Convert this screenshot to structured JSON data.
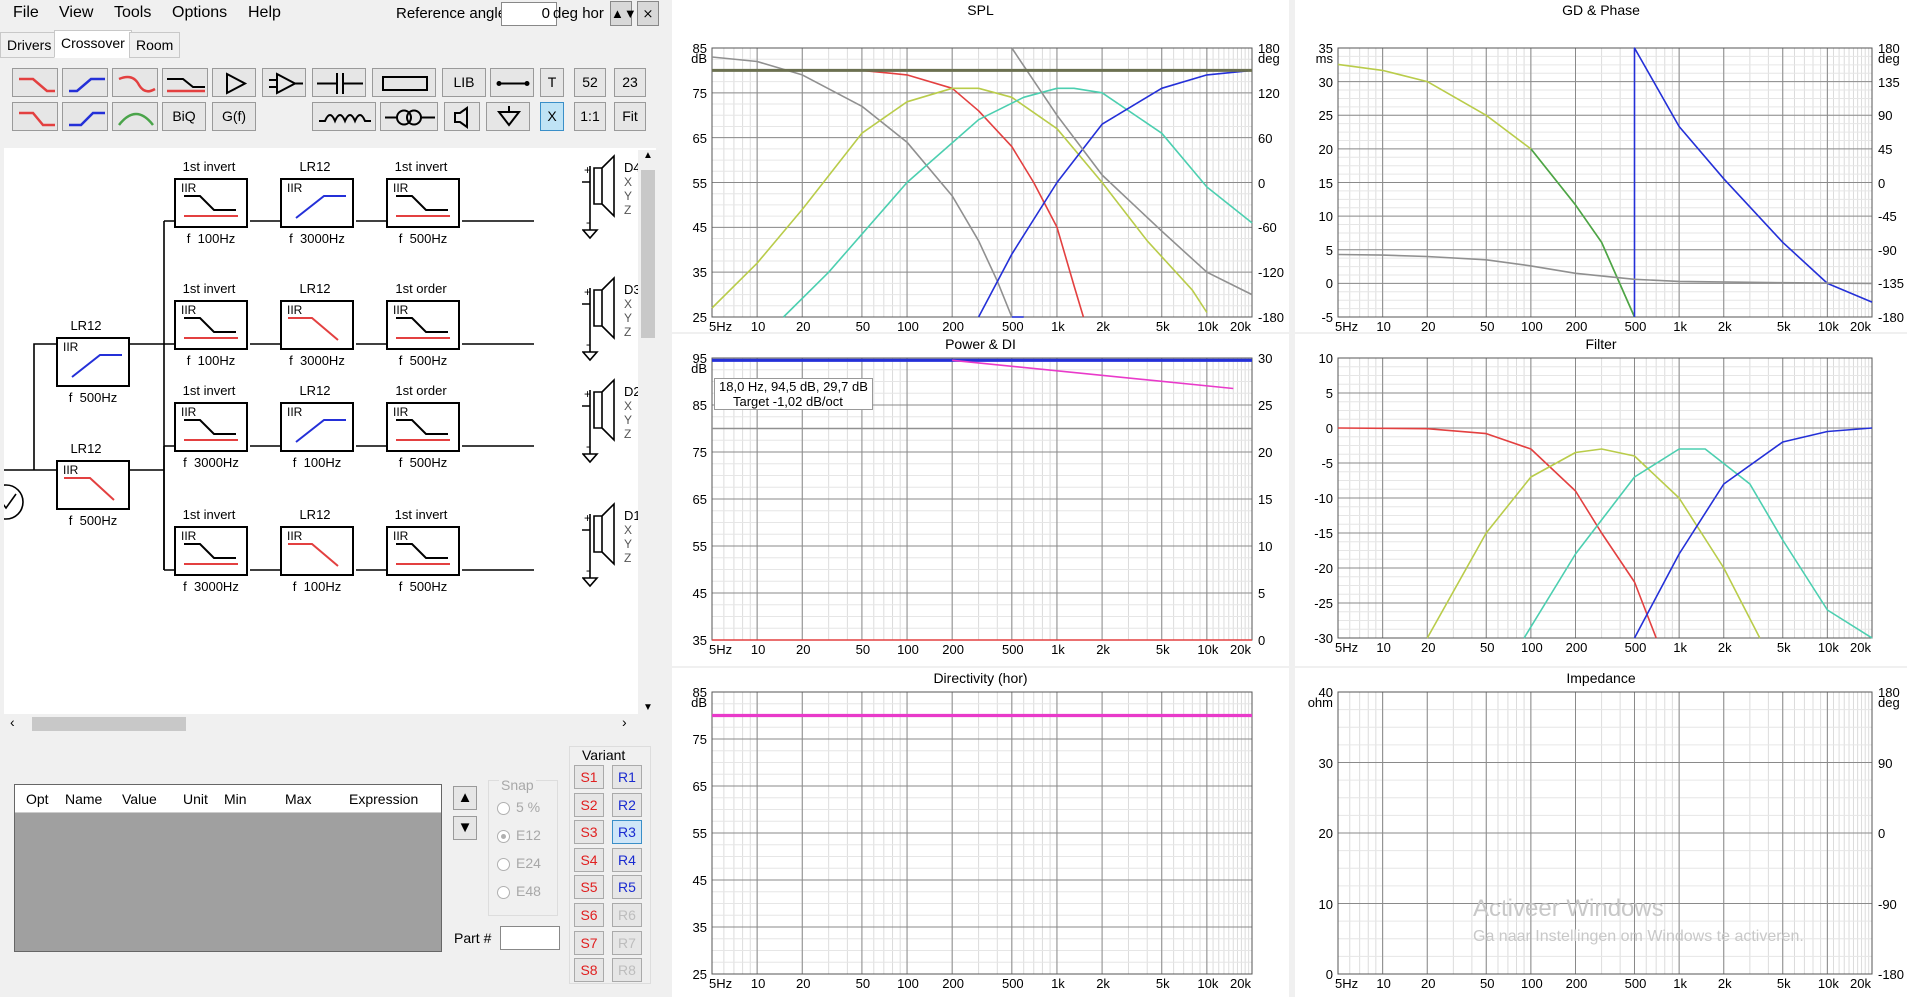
{
  "menu": [
    "File",
    "View",
    "Tools",
    "Options",
    "Help"
  ],
  "ref": {
    "label": "Reference angle",
    "value": "0",
    "unit": "deg hor"
  },
  "tabs": [
    "Drivers",
    "Crossover",
    "Room"
  ],
  "toolbar": {
    "b1": "LIB",
    "b2": "T",
    "b3": "52",
    "b4": "23",
    "b5": "BiQ",
    "b6": "G(f)",
    "b7": "X",
    "b8": "1:1",
    "b9": "Fit"
  },
  "crossover": {
    "f_prefix": "f",
    "left": [
      {
        "type": "LR12",
        "freq": "500Hz"
      },
      {
        "type": "LR12",
        "freq": "500Hz"
      }
    ],
    "rows": [
      [
        {
          "title": "1st invert",
          "freq": "100Hz"
        },
        {
          "title": "LR12",
          "freq": "3000Hz"
        },
        {
          "title": "1st invert",
          "freq": "500Hz"
        }
      ],
      [
        {
          "title": "1st invert",
          "freq": "100Hz"
        },
        {
          "title": "LR12",
          "freq": "3000Hz"
        },
        {
          "title": "1st order",
          "freq": "500Hz"
        }
      ],
      [
        {
          "title": "1st invert",
          "freq": "3000Hz"
        },
        {
          "title": "LR12",
          "freq": "100Hz"
        },
        {
          "title": "1st order",
          "freq": "500Hz"
        }
      ],
      [
        {
          "title": "1st invert",
          "freq": "3000Hz"
        },
        {
          "title": "LR12",
          "freq": "100Hz"
        },
        {
          "title": "1st invert",
          "freq": "500Hz"
        }
      ]
    ],
    "iir": "IIR",
    "drivers": [
      "D4",
      "D3",
      "D2",
      "D1"
    ],
    "xyz": [
      "X",
      "Y",
      "Z"
    ]
  },
  "params": {
    "headers": [
      "Opt",
      "Name",
      "Value",
      "Unit",
      "Min",
      "Max",
      "Expression"
    ]
  },
  "snap": {
    "title": "Snap",
    "options": [
      "5 %",
      "E12",
      "E24",
      "E48"
    ],
    "selected": "E12"
  },
  "partnum": "Part #",
  "variant": {
    "title": "Variant",
    "s": [
      "S1",
      "S2",
      "S3",
      "S4",
      "S5",
      "S6",
      "S7",
      "S8"
    ],
    "r": [
      "R1",
      "R2",
      "R3",
      "R4",
      "R5",
      "R6",
      "R7",
      "R8"
    ]
  },
  "colors": {
    "red": "#e34040",
    "blue": "#2430d8",
    "yellow": "#b9cc4a",
    "teal": "#4ccfb0",
    "green": "#4aa44a",
    "gray": "#909090",
    "magenta": "#e93aca"
  },
  "freq_ticks": [
    "5Hz",
    "10",
    "20",
    "50",
    "100",
    "200",
    "500",
    "1k",
    "2k",
    "5k",
    "10k",
    "20k"
  ],
  "charts": {
    "spl": {
      "title": "SPL",
      "yunit": "dB",
      "y2unit": "deg",
      "yticks": [
        "85",
        "75",
        "65",
        "55",
        "45",
        "35",
        "25"
      ],
      "y2ticks": [
        "180",
        "120",
        "60",
        "0",
        "-60",
        "-120",
        "-180"
      ]
    },
    "gd": {
      "title": "GD & Phase",
      "yunit": "ms",
      "y2unit": "deg",
      "yticks": [
        "35",
        "30",
        "25",
        "20",
        "15",
        "10",
        "5",
        "0",
        "-5"
      ],
      "y2ticks": [
        "180",
        "135",
        "90",
        "45",
        "0",
        "-45",
        "-90",
        "-135",
        "-180"
      ]
    },
    "power": {
      "title": "Power & DI",
      "yunit": "dB",
      "yticks": [
        "95",
        "85",
        "75",
        "65",
        "55",
        "45",
        "35"
      ],
      "y2ticks": [
        "30",
        "25",
        "20",
        "15",
        "10",
        "5",
        "0"
      ],
      "readout": "18,0 Hz, 94,5 dB, 29,7 dB",
      "target": "Target -1,02 dB/oct"
    },
    "filter": {
      "title": "Filter",
      "yticks": [
        "10",
        "5",
        "0",
        "-5",
        "-10",
        "-15",
        "-20",
        "-25",
        "-30"
      ]
    },
    "dir": {
      "title": "Directivity (hor)",
      "yunit": "dB",
      "yticks": [
        "85",
        "75",
        "65",
        "55",
        "45",
        "35",
        "25"
      ]
    },
    "imp": {
      "title": "Impedance",
      "yunit": "ohm",
      "y2unit": "deg",
      "yticks": [
        "40",
        "30",
        "20",
        "10",
        "0"
      ],
      "y2ticks": [
        "180",
        "90",
        "0",
        "-90",
        "-180"
      ]
    }
  },
  "watermark": {
    "line1": "Activeer Windows",
    "line2": "Ga naar Instellingen om Windows te activeren."
  },
  "chart_data": [
    {
      "type": "line",
      "title": "SPL",
      "x_scale": "log",
      "xlim": [
        5,
        20000
      ],
      "ylim": [
        25,
        85
      ],
      "y2lim": [
        -180,
        180
      ],
      "series": [
        {
          "color": "gray",
          "points": [
            [
              5,
              83
            ],
            [
              10,
              82
            ],
            [
              20,
              79
            ],
            [
              50,
              72
            ],
            [
              100,
              64
            ],
            [
              200,
              52
            ],
            [
              300,
              42
            ],
            [
              400,
              33
            ],
            [
              500,
              25
            ]
          ]
        },
        {
          "color": "red",
          "points": [
            [
              5,
              80
            ],
            [
              50,
              80
            ],
            [
              100,
              79
            ],
            [
              200,
              76
            ],
            [
              300,
              71
            ],
            [
              500,
              63
            ],
            [
              700,
              55
            ],
            [
              1000,
              45
            ],
            [
              1300,
              32
            ],
            [
              1500,
              25
            ]
          ]
        },
        {
          "color": "yellow",
          "points": [
            [
              5,
              27
            ],
            [
              10,
              37
            ],
            [
              20,
              49
            ],
            [
              50,
              66
            ],
            [
              100,
              73
            ],
            [
              200,
              76
            ],
            [
              300,
              76
            ],
            [
              500,
              74
            ],
            [
              1000,
              67
            ],
            [
              2000,
              55
            ],
            [
              4000,
              42
            ],
            [
              8000,
              31
            ],
            [
              10000,
              26
            ]
          ]
        },
        {
          "color": "teal",
          "points": [
            [
              15,
              25
            ],
            [
              30,
              35
            ],
            [
              100,
              55
            ],
            [
              300,
              69
            ],
            [
              600,
              74
            ],
            [
              1000,
              76
            ],
            [
              1300,
              76
            ],
            [
              2000,
              75
            ],
            [
              5000,
              66
            ],
            [
              10000,
              54
            ],
            [
              20000,
              46
            ]
          ]
        },
        {
          "color": "blue",
          "points": [
            [
              300,
              25
            ],
            [
              500,
              39
            ],
            [
              1000,
              55
            ],
            [
              2000,
              68
            ],
            [
              5000,
              76
            ],
            [
              10000,
              79
            ],
            [
              20000,
              80
            ]
          ]
        },
        {
          "color": "gray",
          "axis": "y2",
          "points": [
            [
              500,
              180
            ],
            [
              1000,
              90
            ],
            [
              2000,
              10
            ],
            [
              5000,
              -65
            ],
            [
              10000,
              -120
            ],
            [
              20000,
              -150
            ]
          ]
        },
        {
          "color": "blue",
          "axis": "y2",
          "points": [
            [
              500,
              -180
            ],
            [
              600,
              -180
            ]
          ]
        },
        {
          "color": "olive",
          "points": [
            [
              5,
              80
            ],
            [
              20000,
              80
            ]
          ]
        }
      ]
    },
    {
      "type": "line",
      "title": "GD & Phase",
      "x_scale": "log",
      "xlim": [
        5,
        20000
      ],
      "ylim": [
        -5,
        35
      ],
      "y2lim": [
        -180,
        180
      ],
      "series": [
        {
          "color": "yellow",
          "axis": "y2",
          "points": [
            [
              5,
              158
            ],
            [
              10,
              150
            ],
            [
              20,
              135
            ],
            [
              50,
              90
            ],
            [
              100,
              45
            ],
            [
              200,
              -30
            ],
            [
              300,
              -80
            ],
            [
              500,
              -180
            ]
          ]
        },
        {
          "color": "green",
          "axis": "y2",
          "points": [
            [
              100,
              45
            ],
            [
              200,
              -30
            ],
            [
              300,
              -80
            ],
            [
              500,
              -180
            ]
          ]
        },
        {
          "color": "blue",
          "axis": "y2",
          "points": [
            [
              500,
              -180
            ],
            [
              500,
              180
            ],
            [
              1000,
              75
            ],
            [
              2000,
              5
            ],
            [
              5000,
              -80
            ],
            [
              10000,
              -135
            ],
            [
              20000,
              -160
            ]
          ]
        },
        {
          "color": "gray",
          "points": [
            [
              5,
              4.3
            ],
            [
              10,
              4.2
            ],
            [
              20,
              4.0
            ],
            [
              50,
              3.5
            ],
            [
              100,
              2.6
            ],
            [
              200,
              1.5
            ],
            [
              500,
              0.6
            ],
            [
              1000,
              0.3
            ],
            [
              5000,
              0.1
            ],
            [
              20000,
              0
            ]
          ]
        }
      ]
    },
    {
      "type": "line",
      "title": "Power & DI",
      "x_scale": "log",
      "xlim": [
        5,
        20000
      ],
      "ylim": [
        35,
        95
      ],
      "y2lim": [
        0,
        30
      ],
      "series": [
        {
          "color": "blue",
          "points": [
            [
              5,
              94.5
            ],
            [
              20000,
              94.5
            ]
          ]
        },
        {
          "color": "magenta",
          "points": [
            [
              200,
              94.5
            ],
            [
              15000,
              88.5
            ]
          ]
        },
        {
          "color": "gray",
          "points": [
            [
              5,
              80
            ],
            [
              20000,
              80
            ]
          ]
        },
        {
          "color": "red",
          "points": [
            [
              5,
              35
            ],
            [
              20000,
              35
            ]
          ]
        }
      ]
    },
    {
      "type": "line",
      "title": "Filter",
      "x_scale": "log",
      "xlim": [
        5,
        20000
      ],
      "ylim": [
        -30,
        10
      ],
      "series": [
        {
          "color": "red",
          "points": [
            [
              5,
              0
            ],
            [
              20,
              -0.1
            ],
            [
              50,
              -0.8
            ],
            [
              100,
              -3
            ],
            [
              200,
              -9
            ],
            [
              300,
              -15
            ],
            [
              500,
              -22
            ],
            [
              700,
              -30
            ]
          ]
        },
        {
          "color": "yellow",
          "points": [
            [
              20,
              -30
            ],
            [
              50,
              -15
            ],
            [
              100,
              -7
            ],
            [
              200,
              -3.5
            ],
            [
              300,
              -3
            ],
            [
              500,
              -4
            ],
            [
              1000,
              -10
            ],
            [
              2000,
              -20
            ],
            [
              3500,
              -30
            ]
          ]
        },
        {
          "color": "teal",
          "points": [
            [
              90,
              -30
            ],
            [
              200,
              -18
            ],
            [
              500,
              -7
            ],
            [
              1000,
              -3
            ],
            [
              1500,
              -3
            ],
            [
              3000,
              -8
            ],
            [
              5000,
              -16
            ],
            [
              10000,
              -26
            ],
            [
              20000,
              -30
            ]
          ]
        },
        {
          "color": "blue",
          "points": [
            [
              500,
              -30
            ],
            [
              1000,
              -18
            ],
            [
              2000,
              -8
            ],
            [
              5000,
              -2
            ],
            [
              10000,
              -0.5
            ],
            [
              20000,
              0
            ]
          ]
        }
      ]
    },
    {
      "type": "line",
      "title": "Directivity (hor)",
      "x_scale": "log",
      "xlim": [
        5,
        20000
      ],
      "ylim": [
        25,
        85
      ],
      "series": [
        {
          "color": "magenta",
          "points": [
            [
              5,
              80
            ],
            [
              20000,
              80
            ]
          ]
        }
      ]
    },
    {
      "type": "line",
      "title": "Impedance",
      "x_scale": "log",
      "xlim": [
        5,
        20000
      ],
      "ylim": [
        0,
        40
      ],
      "y2lim": [
        -180,
        180
      ],
      "series": []
    }
  ]
}
